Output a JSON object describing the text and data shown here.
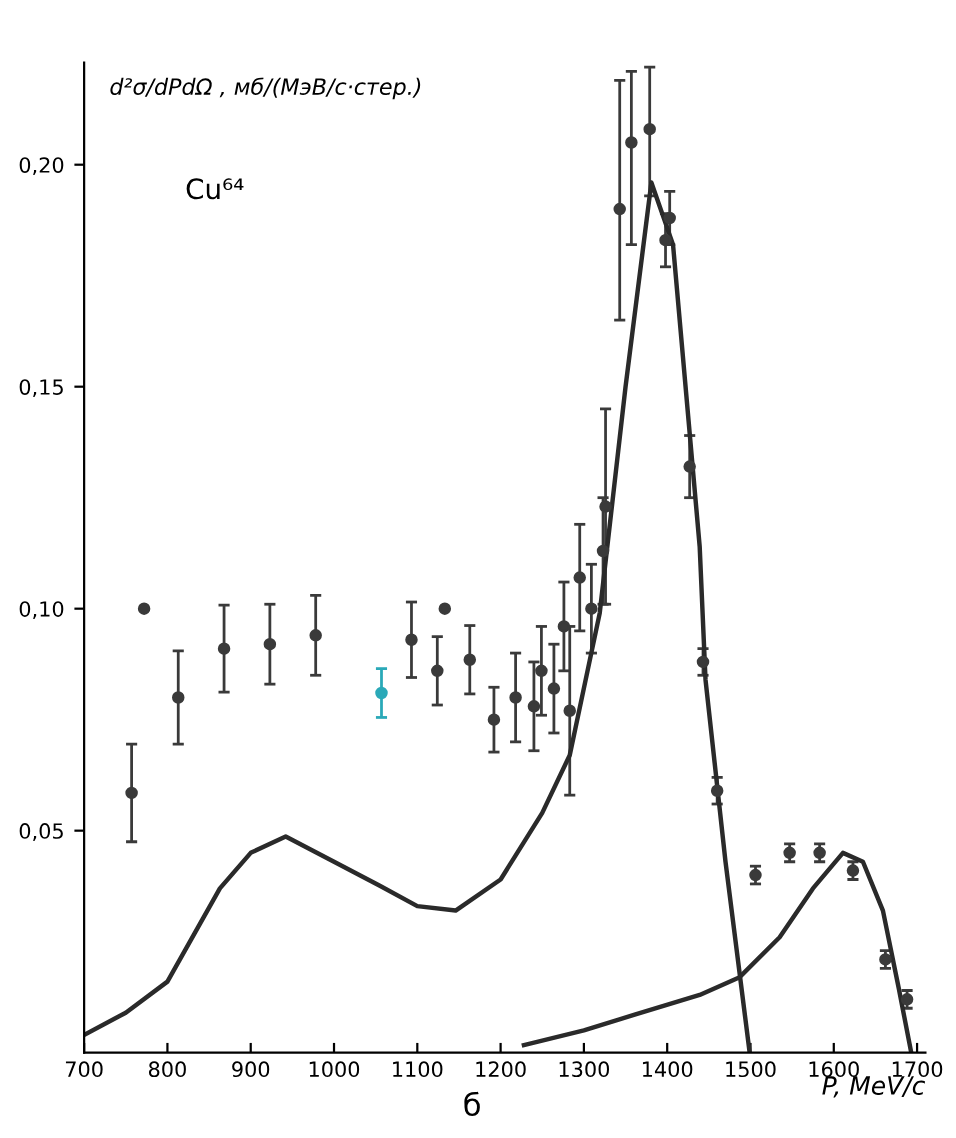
{
  "chart_data": {
    "type": "scatter",
    "ylabel": "d²σ/dPdΩ , мб/(МэВ/с·стер.)",
    "xlabel": "P, MeV/c",
    "annotations": [
      "Cu⁶⁴",
      "б"
    ],
    "xlim": [
      700,
      1710
    ],
    "ylim": [
      0,
      0.223
    ],
    "xticks": [
      700,
      800,
      900,
      1000,
      1100,
      1200,
      1300,
      1400,
      1500,
      1600,
      1700
    ],
    "yticks": [
      {
        "value": 0.05,
        "label": "0,05"
      },
      {
        "value": 0.1,
        "label": "0,10"
      },
      {
        "value": 0.15,
        "label": "0,15"
      },
      {
        "value": 0.2,
        "label": "0,20"
      }
    ],
    "grid": false,
    "marker": "circle",
    "series": [
      {
        "x": [
          757,
          772,
          813,
          868,
          923,
          978,
          1057,
          1093,
          1124,
          1133,
          1163,
          1192,
          1218,
          1240,
          1249,
          1264,
          1276,
          1283,
          1295,
          1309,
          1323,
          1326,
          1343,
          1357,
          1379,
          1398,
          1403,
          1427,
          1443,
          1460,
          1506,
          1547,
          1583,
          1623,
          1662,
          1688
        ],
        "values": [
          0.0585,
          0.1,
          0.08,
          0.091,
          0.092,
          0.094,
          0.081,
          0.093,
          0.086,
          0.1,
          0.0885,
          0.075,
          0.08,
          0.078,
          0.086,
          0.082,
          0.096,
          0.077,
          0.107,
          0.1,
          0.113,
          0.123,
          0.19,
          0.205,
          0.208,
          0.183,
          0.188,
          0.132,
          0.088,
          0.059,
          0.04,
          0.045,
          0.045,
          0.041,
          0.021,
          0.012
        ],
        "errors": [
          0.011,
          null,
          0.0105,
          0.0098,
          0.009,
          0.009,
          0.0055,
          0.0085,
          0.0077,
          null,
          0.0077,
          0.0073,
          0.01,
          0.01,
          0.01,
          0.01,
          0.01,
          0.019,
          0.012,
          0.01,
          0.012,
          0.022,
          [
            0.165,
            0.219
          ],
          [
            0.182,
            0.221
          ],
          [
            0.193,
            0.222
          ],
          0.006,
          0.006,
          0.007,
          0.003,
          0.003,
          0.002,
          0.002,
          0.002,
          0.002,
          0.002,
          0.002
        ],
        "colors": [
          "#3a3a3a",
          "#3a3a3a",
          "#3a3a3a",
          "#3a3a3a",
          "#3a3a3a",
          "#3a3a3a",
          "#2aa9b8",
          "#3a3a3a",
          "#3a3a3a",
          "#3a3a3a",
          "#3a3a3a",
          "#3a3a3a",
          "#3a3a3a",
          "#3a3a3a",
          "#3a3a3a",
          "#3a3a3a",
          "#3a3a3a",
          "#3a3a3a",
          "#3a3a3a",
          "#3a3a3a",
          "#3a3a3a",
          "#3a3a3a",
          "#3a3a3a",
          "#3a3a3a",
          "#3a3a3a",
          "#3a3a3a",
          "#3a3a3a",
          "#3a3a3a",
          "#3a3a3a",
          "#3a3a3a",
          "#3a3a3a",
          "#3a3a3a",
          "#3a3a3a",
          "#3a3a3a",
          "#3a3a3a",
          "#3a3a3a"
        ]
      },
      {
        "type": "line",
        "color": "#2a2a2a",
        "marker": "none",
        "x": [
          700,
          750,
          800,
          863,
          900,
          942,
          1000,
          1055,
          1100,
          1146,
          1200,
          1250,
          1283,
          1319,
          1350,
          1381,
          1407,
          1439,
          1446,
          1470,
          1499
        ],
        "values": [
          0.004,
          0.009,
          0.016,
          0.037,
          0.045,
          0.0487,
          0.043,
          0.0376,
          0.033,
          0.032,
          0.039,
          0.054,
          0.067,
          0.099,
          0.15,
          0.196,
          0.182,
          0.114,
          0.084,
          0.043,
          0.0
        ]
      },
      {
        "type": "line",
        "color": "#2a2a2a",
        "marker": "none",
        "x": [
          1228,
          1300,
          1360,
          1439,
          1487,
          1535,
          1575,
          1611,
          1635,
          1659,
          1678,
          1693
        ],
        "values": [
          0.0017,
          0.005,
          0.0085,
          0.013,
          0.017,
          0.026,
          0.037,
          0.045,
          0.043,
          0.032,
          0.0145,
          0.0
        ]
      }
    ]
  }
}
